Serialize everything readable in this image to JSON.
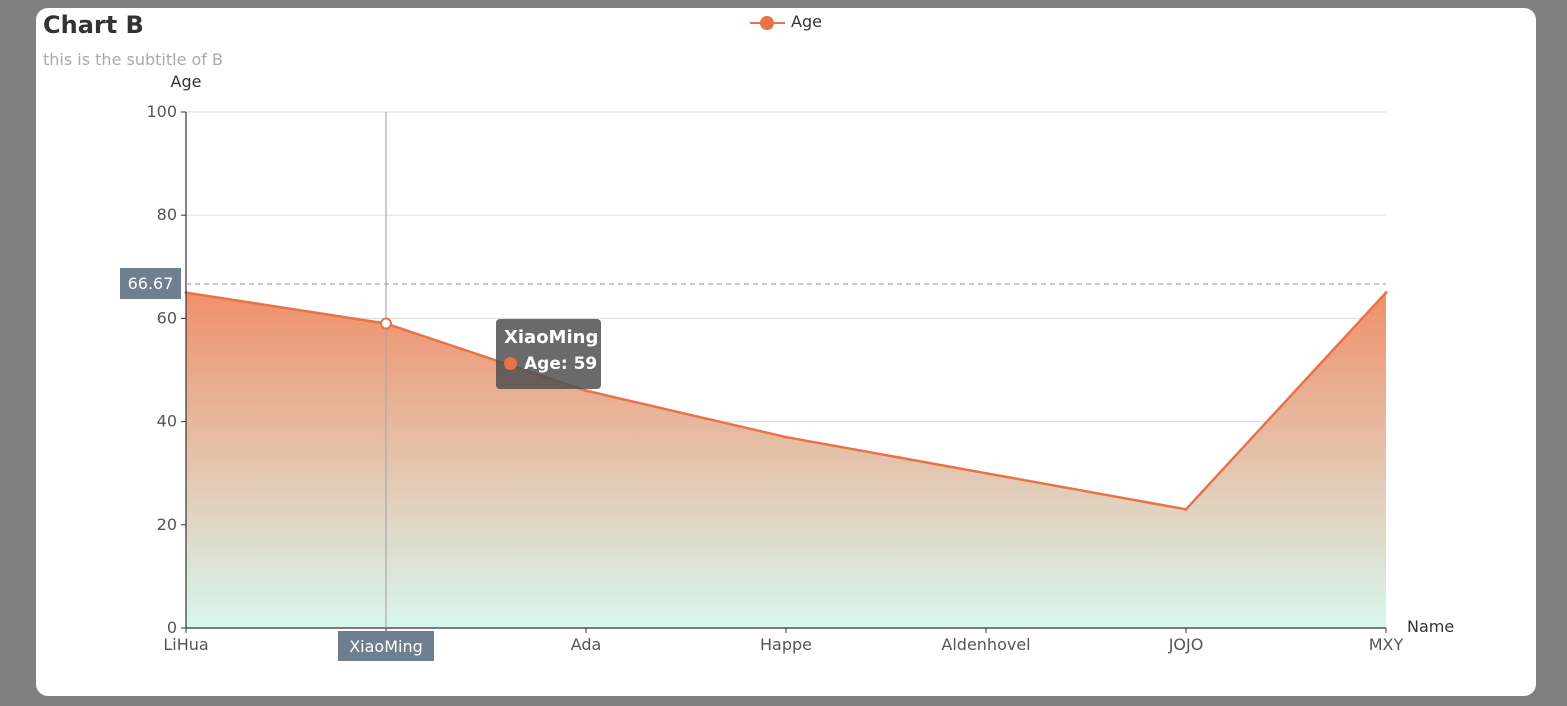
{
  "chart_data": {
    "type": "area",
    "title": "Chart B",
    "subtitle": "this is the subtitle of B",
    "xlabel": "Name",
    "ylabel": "Age",
    "categories": [
      "LiHua",
      "XiaoMing",
      "Ada",
      "Happe",
      "Aldenhovel",
      "JOJO",
      "MXY"
    ],
    "series": [
      {
        "name": "Age",
        "values": [
          65,
          59,
          46,
          37,
          30,
          23,
          65
        ]
      }
    ],
    "ylim": [
      0,
      100
    ],
    "yticks": [
      0,
      20,
      40,
      60,
      80,
      100
    ],
    "legend": {
      "placement": "top-center"
    },
    "grid": true,
    "colors": {
      "line": "#e87347",
      "area_top": "#f0906a",
      "area_bottom": "#d8f7ee",
      "axis_pointer_label": "#6e7f8f"
    },
    "axis_pointer": {
      "x_category": "XiaoMing",
      "y_value": 66.67,
      "y_label": "66.67"
    },
    "tooltip": {
      "title": "XiaoMing",
      "series_name": "Age",
      "value_text": "Age: 59"
    }
  }
}
